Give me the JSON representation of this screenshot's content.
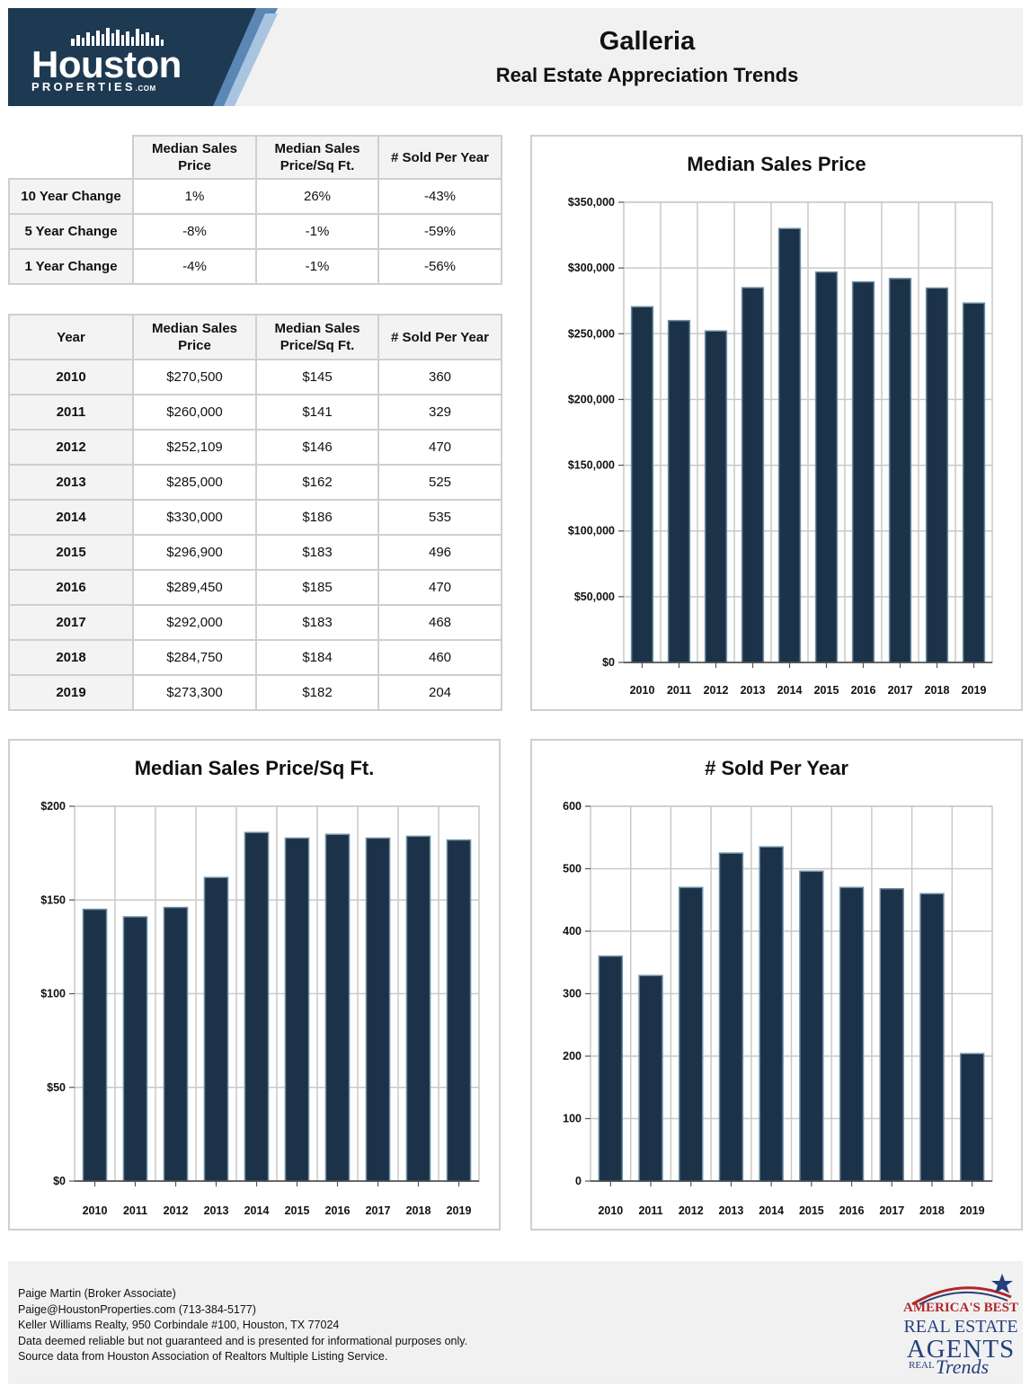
{
  "brand": {
    "logo_word": "Houston",
    "logo_sub": "PROPERTIES",
    "logo_sub_suffix": ".COM"
  },
  "header": {
    "title": "Galleria",
    "subtitle": "Real Estate Appreciation Trends"
  },
  "change_table": {
    "headers": [
      "Median Sales Price",
      "Median Sales Price/Sq Ft.",
      "# Sold Per Year"
    ],
    "rows": [
      {
        "label": "10 Year Change",
        "values": [
          "1%",
          "26%",
          "-43%"
        ]
      },
      {
        "label": "5 Year Change",
        "values": [
          "-8%",
          "-1%",
          "-59%"
        ]
      },
      {
        "label": "1 Year Change",
        "values": [
          "-4%",
          "-1%",
          "-56%"
        ]
      }
    ]
  },
  "year_table": {
    "headers": [
      "Year",
      "Median Sales Price",
      "Median Sales Price/Sq Ft.",
      "# Sold Per Year"
    ],
    "rows": [
      [
        "2010",
        "$270,500",
        "$145",
        "360"
      ],
      [
        "2011",
        "$260,000",
        "$141",
        "329"
      ],
      [
        "2012",
        "$252,109",
        "$146",
        "470"
      ],
      [
        "2013",
        "$285,000",
        "$162",
        "525"
      ],
      [
        "2014",
        "$330,000",
        "$186",
        "535"
      ],
      [
        "2015",
        "$296,900",
        "$183",
        "496"
      ],
      [
        "2016",
        "$289,450",
        "$185",
        "470"
      ],
      [
        "2017",
        "$292,000",
        "$183",
        "468"
      ],
      [
        "2018",
        "$284,750",
        "$184",
        "460"
      ],
      [
        "2019",
        "$273,300",
        "$182",
        "204"
      ]
    ]
  },
  "colors": {
    "bar": "#1c3248",
    "bar_edge": "#6d8fa6",
    "grid": "#c9c9c9",
    "logo_dark": "#1e3a52",
    "logo_accent": "#5b87b4"
  },
  "chart_data": [
    {
      "type": "bar",
      "title": "Median Sales Price",
      "categories": [
        "2010",
        "2011",
        "2012",
        "2013",
        "2014",
        "2015",
        "2016",
        "2017",
        "2018",
        "2019"
      ],
      "values": [
        270500,
        260000,
        252109,
        285000,
        330000,
        296900,
        289450,
        292000,
        284750,
        273300
      ],
      "ylim": [
        0,
        350000
      ],
      "yticks": [
        0,
        50000,
        100000,
        150000,
        200000,
        250000,
        300000,
        350000
      ],
      "ytick_labels": [
        "$0",
        "$50,000",
        "$100,000",
        "$150,000",
        "$200,000",
        "$250,000",
        "$300,000",
        "$350,000"
      ],
      "grid": true
    },
    {
      "type": "bar",
      "title": "Median Sales Price/Sq Ft.",
      "categories": [
        "2010",
        "2011",
        "2012",
        "2013",
        "2014",
        "2015",
        "2016",
        "2017",
        "2018",
        "2019"
      ],
      "values": [
        145,
        141,
        146,
        162,
        186,
        183,
        185,
        183,
        184,
        182
      ],
      "ylim": [
        0,
        200
      ],
      "yticks": [
        0,
        50,
        100,
        150,
        200
      ],
      "ytick_labels": [
        "$0",
        "$50",
        "$100",
        "$150",
        "$200"
      ],
      "grid": true
    },
    {
      "type": "bar",
      "title": "# Sold Per Year",
      "categories": [
        "2010",
        "2011",
        "2012",
        "2013",
        "2014",
        "2015",
        "2016",
        "2017",
        "2018",
        "2019"
      ],
      "values": [
        360,
        329,
        470,
        525,
        535,
        496,
        470,
        468,
        460,
        204
      ],
      "ylim": [
        0,
        600
      ],
      "yticks": [
        0,
        100,
        200,
        300,
        400,
        500,
        600
      ],
      "ytick_labels": [
        "0",
        "100",
        "200",
        "300",
        "400",
        "500",
        "600"
      ],
      "grid": true
    }
  ],
  "footer": {
    "lines": [
      "Paige Martin (Broker Associate)",
      "Paige@HoustonProperties.com (713-384-5177)",
      "Keller Williams Realty, 950 Corbindale #100, Houston, TX 77024",
      "Data deemed reliable but not guaranteed and is presented for informational purposes only.",
      "Source data from Houston Association of Realtors Multiple Listing Service."
    ],
    "badge": {
      "line1": "AMERICA'S BEST",
      "line2": "REAL ESTATE",
      "line3": "AGENTS",
      "line4": "REAL",
      "line5": "Trends"
    }
  }
}
